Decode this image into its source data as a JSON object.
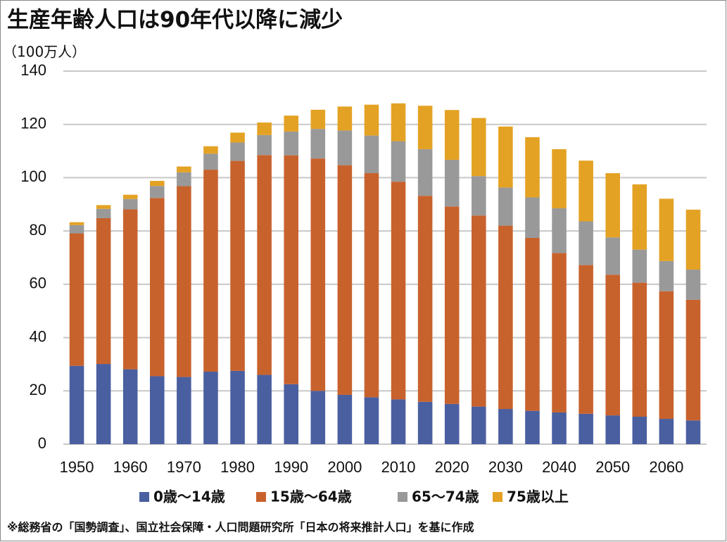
{
  "chart_data": {
    "type": "stacked_bar",
    "title": "生産年齢人口は90年代以降に減少",
    "y_axis_label": "（100万人）",
    "categories": [
      "1950",
      null,
      "1960",
      null,
      "1970",
      null,
      "1980",
      null,
      "1990",
      null,
      "2000",
      null,
      "2010",
      null,
      "2020",
      null,
      "2030",
      null,
      "2040",
      null,
      "2050",
      null,
      "2060",
      null
    ],
    "series": [
      {
        "name": "0歳～14歳",
        "color": "#4a5fa0",
        "values": [
          29.4,
          30.1,
          28.1,
          25.5,
          25.2,
          27.2,
          27.5,
          26.0,
          22.5,
          20.0,
          18.5,
          17.6,
          16.8,
          15.9,
          15.1,
          14.1,
          13.2,
          12.5,
          11.9,
          11.4,
          10.8,
          10.3,
          9.5,
          8.9
        ]
      },
      {
        "name": "15歳～64歳",
        "color": "#c8622d",
        "values": [
          49.7,
          54.7,
          60.0,
          66.9,
          71.6,
          75.8,
          78.8,
          82.5,
          85.9,
          87.2,
          86.2,
          84.1,
          81.7,
          77.3,
          74.1,
          71.7,
          68.8,
          64.9,
          59.8,
          55.8,
          52.8,
          50.3,
          47.9,
          45.3
        ]
      },
      {
        "name": "65～74歳",
        "color": "#999999",
        "values": [
          3.1,
          3.5,
          3.9,
          4.5,
          5.2,
          6.0,
          6.9,
          7.5,
          8.9,
          11.1,
          13.0,
          14.1,
          15.2,
          17.5,
          17.5,
          14.8,
          14.3,
          15.2,
          16.8,
          16.4,
          14.0,
          12.4,
          11.3,
          11.3
        ]
      },
      {
        "name": "75歳以上",
        "color": "#e4a224",
        "values": [
          1.1,
          1.4,
          1.6,
          1.9,
          2.2,
          2.8,
          3.7,
          4.7,
          6.0,
          7.2,
          9.0,
          11.6,
          14.2,
          16.3,
          18.7,
          21.8,
          22.9,
          22.6,
          22.2,
          22.8,
          24.1,
          24.5,
          23.4,
          22.5
        ]
      }
    ],
    "ylim": [
      0,
      140
    ],
    "yticks": [
      0,
      20,
      40,
      60,
      80,
      100,
      120,
      140
    ],
    "grid": true,
    "legend": "bottom",
    "note": "※総務省の「国勢調査」、国立社会保障・人口問題研究所「日本の将来推計人口」を基に作成"
  }
}
